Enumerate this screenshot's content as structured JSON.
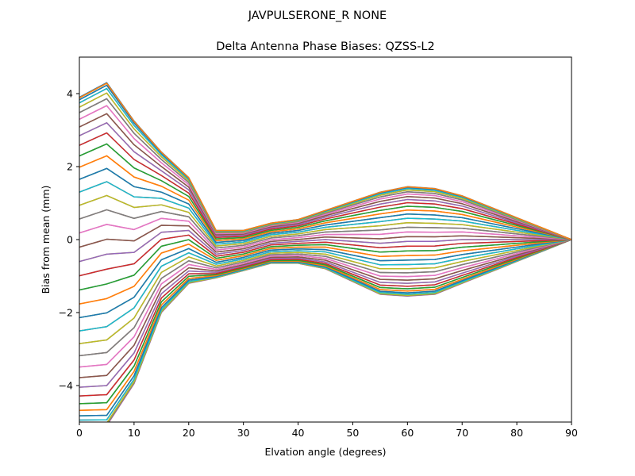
{
  "chart_data": {
    "type": "line",
    "suptitle": "JAVPULSERONE_R  NONE",
    "title": "Delta Antenna Phase Biases: QZSS-L2",
    "xlabel": "Elvation angle (degrees)",
    "ylabel": "Bias from mean (mm)",
    "xlim": [
      0,
      90
    ],
    "ylim": [
      -5,
      5
    ],
    "x_ticks": [
      0,
      10,
      20,
      30,
      40,
      50,
      60,
      70,
      80,
      90
    ],
    "y_ticks": [
      -4,
      -2,
      0,
      2,
      4
    ],
    "y_tick_labels": [
      "−4",
      "−2",
      "0",
      "2",
      "4"
    ],
    "x": [
      0,
      5,
      10,
      15,
      20,
      25,
      30,
      35,
      40,
      45,
      50,
      55,
      60,
      65,
      70,
      75,
      80,
      85,
      90
    ],
    "grid": false,
    "legend": "none",
    "series_count": 72,
    "color_cycle": [
      "#1f77b4",
      "#ff7f0e",
      "#2ca02c",
      "#d62728",
      "#9467bd",
      "#8c564b",
      "#e377c2",
      "#7f7f7f",
      "#bcbd22",
      "#17becf"
    ],
    "series_profile": {
      "phase_step_degrees": 5,
      "at_0": {
        "mean": -0.6,
        "amplitude": 4.5
      },
      "at_5": {
        "mean": -0.4,
        "amplitude": 4.7
      },
      "at_10": {
        "mean": -0.35,
        "amplitude": 3.6
      },
      "at_15": {
        "mean": 0.2,
        "amplitude": 2.2
      },
      "at_20": {
        "mean": 0.25,
        "amplitude": 1.45
      },
      "at_25": {
        "mean": -0.4,
        "amplitude": 0.65
      },
      "at_30": {
        "mean": -0.3,
        "amplitude": 0.55
      },
      "at_35": {
        "mean": -0.1,
        "amplitude": 0.55
      },
      "at_40": {
        "mean": -0.05,
        "amplitude": 0.6
      },
      "at_45": {
        "mean": 0.0,
        "amplitude": 0.8
      },
      "at_50": {
        "mean": -0.05,
        "amplitude": 1.1
      },
      "at_55": {
        "mean": -0.1,
        "amplitude": 1.4
      },
      "at_60": {
        "mean": -0.05,
        "amplitude": 1.5
      },
      "at_65": {
        "mean": -0.05,
        "amplitude": 1.45
      },
      "at_70": {
        "mean": 0.0,
        "amplitude": 1.2
      },
      "at_75": {
        "mean": 0.0,
        "amplitude": 0.9
      },
      "at_80": {
        "mean": 0.0,
        "amplitude": 0.6
      },
      "at_85": {
        "mean": 0.0,
        "amplitude": 0.3
      },
      "at_90": {
        "mean": 0.0,
        "amplitude": 0.0
      }
    }
  }
}
